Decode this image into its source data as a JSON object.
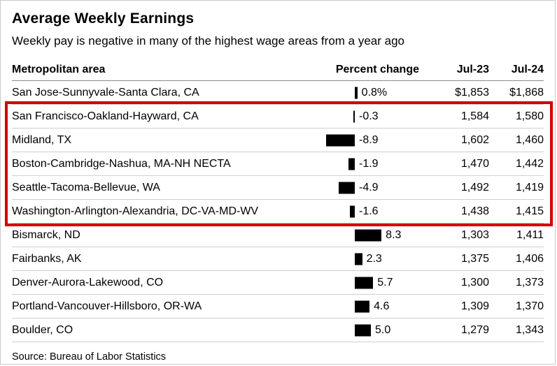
{
  "header": {
    "title": "Average Weekly Earnings",
    "subtitle": "Weekly pay is negative in many of the highest wage areas from a year ago"
  },
  "table": {
    "columns": [
      "Metropolitan area",
      "Percent change",
      "Jul-23",
      "Jul-24"
    ],
    "rows": [
      {
        "area": "San Jose-Sunnyvale-Santa Clara, CA",
        "change": 0.8,
        "change_label": "0.8%",
        "jul23": "$1,853",
        "jul24": "$1,868",
        "highlighted": false
      },
      {
        "area": "San Francisco-Oakland-Hayward, CA",
        "change": -0.3,
        "change_label": "-0.3",
        "jul23": "1,584",
        "jul24": "1,580",
        "highlighted": true
      },
      {
        "area": "Midland, TX",
        "change": -8.9,
        "change_label": "-8.9",
        "jul23": "1,602",
        "jul24": "1,460",
        "highlighted": true
      },
      {
        "area": "Boston-Cambridge-Nashua, MA-NH NECTA",
        "change": -1.9,
        "change_label": "-1.9",
        "jul23": "1,470",
        "jul24": "1,442",
        "highlighted": true
      },
      {
        "area": "Seattle-Tacoma-Bellevue, WA",
        "change": -4.9,
        "change_label": "-4.9",
        "jul23": "1,492",
        "jul24": "1,419",
        "highlighted": true
      },
      {
        "area": "Washington-Arlington-Alexandria, DC-VA-MD-WV",
        "change": -1.6,
        "change_label": "-1.6",
        "jul23": "1,438",
        "jul24": "1,415",
        "highlighted": true
      },
      {
        "area": "Bismarck, ND",
        "change": 8.3,
        "change_label": "8.3",
        "jul23": "1,303",
        "jul24": "1,411",
        "highlighted": false
      },
      {
        "area": "Fairbanks, AK",
        "change": 2.3,
        "change_label": "2.3",
        "jul23": "1,375",
        "jul24": "1,406",
        "highlighted": false
      },
      {
        "area": "Denver-Aurora-Lakewood, CO",
        "change": 5.7,
        "change_label": "5.7",
        "jul23": "1,300",
        "jul24": "1,373",
        "highlighted": false
      },
      {
        "area": "Portland-Vancouver-Hillsboro, OR-WA",
        "change": 4.6,
        "change_label": "4.6",
        "jul23": "1,309",
        "jul24": "1,370",
        "highlighted": false
      },
      {
        "area": "Boulder, CO",
        "change": 5.0,
        "change_label": "5.0",
        "jul23": "1,279",
        "jul24": "1,343",
        "highlighted": false
      }
    ]
  },
  "source": "Source: Bureau of Labor Statistics",
  "colors": {
    "bar": "#000000",
    "highlight_border": "#d50000",
    "text": "#000000"
  },
  "chart_data": {
    "type": "bar",
    "orientation": "horizontal",
    "title": "Average Weekly Earnings",
    "subtitle": "Weekly pay is negative in many of the highest wage areas from a year ago",
    "categories": [
      "San Jose-Sunnyvale-Santa Clara, CA",
      "San Francisco-Oakland-Hayward, CA",
      "Midland, TX",
      "Boston-Cambridge-Nashua, MA-NH NECTA",
      "Seattle-Tacoma-Bellevue, WA",
      "Washington-Arlington-Alexandria, DC-VA-MD-WV",
      "Bismarck, ND",
      "Fairbanks, AK",
      "Denver-Aurora-Lakewood, CO",
      "Portland-Vancouver-Hillsboro, OR-WA",
      "Boulder, CO"
    ],
    "series": [
      {
        "name": "Percent change",
        "values": [
          0.8,
          -0.3,
          -8.9,
          -1.9,
          -4.9,
          -1.6,
          8.3,
          2.3,
          5.7,
          4.6,
          5.0
        ]
      },
      {
        "name": "Jul-23",
        "values": [
          1853,
          1584,
          1602,
          1470,
          1492,
          1438,
          1303,
          1375,
          1300,
          1309,
          1279
        ]
      },
      {
        "name": "Jul-24",
        "values": [
          1868,
          1580,
          1460,
          1442,
          1419,
          1415,
          1411,
          1406,
          1373,
          1370,
          1343
        ]
      }
    ],
    "xlabel": "Percent change",
    "ylabel": "Metropolitan area",
    "grid": false,
    "legend": "none",
    "annotations": [
      "Red box highlights San Francisco through Washington rows (negative changes in highest wage areas)"
    ],
    "source": "Source: Bureau of Labor Statistics"
  }
}
